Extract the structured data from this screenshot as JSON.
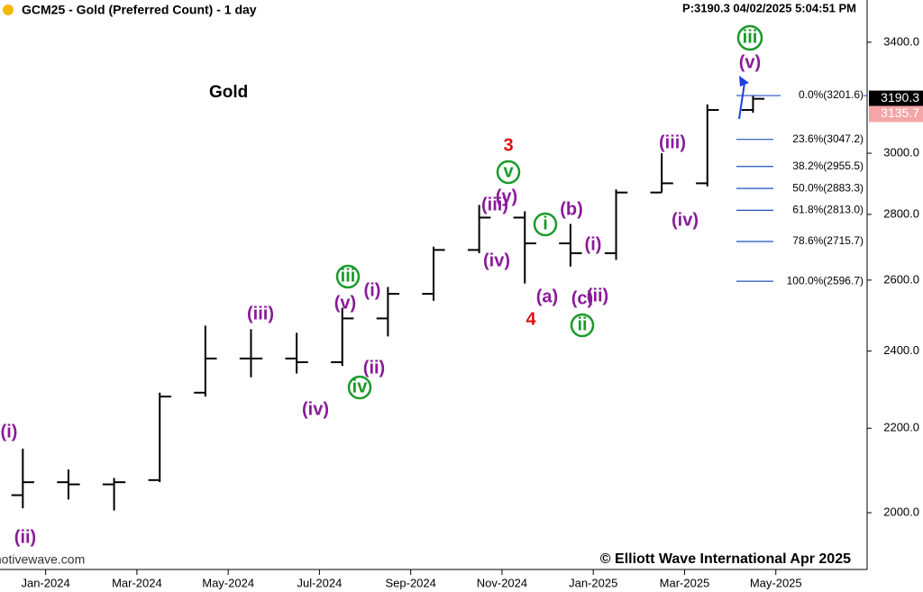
{
  "chart_data": {
    "type": "ohlc",
    "title": "GCM25 - Gold (Preferred Count) - 1 day",
    "status": "P:3190.3  04/02/2025 5:04:51 PM",
    "label": "Gold",
    "copyright": "© Elliott Wave International Apr 2025",
    "source": "motivewave.com",
    "log_scale": true,
    "color": "#000000",
    "x": [
      "2023-12",
      "2024-01",
      "2024-02",
      "2024-03",
      "2024-04",
      "2024-05",
      "2024-06",
      "2024-07",
      "2024-08",
      "2024-09",
      "2024-10",
      "2024-11",
      "2024-12",
      "2025-01",
      "2025-02",
      "2025-03",
      "2025-04"
    ],
    "open": [
      2040,
      2070,
      2065,
      2075,
      2290,
      2380,
      2380,
      2370,
      2490,
      2560,
      2690,
      2790,
      2710,
      2680,
      2870,
      2900,
      3150
    ],
    "high": [
      2150,
      2100,
      2080,
      2290,
      2470,
      2460,
      2450,
      2520,
      2580,
      2700,
      2830,
      2810,
      2770,
      2880,
      3000,
      3170,
      3200
    ],
    "low": [
      2010,
      2030,
      2005,
      2070,
      2280,
      2330,
      2340,
      2360,
      2440,
      2540,
      2680,
      2590,
      2640,
      2660,
      2870,
      2890,
      3140
    ],
    "close": [
      2070,
      2065,
      2070,
      2280,
      2380,
      2380,
      2370,
      2490,
      2560,
      2690,
      2790,
      2710,
      2680,
      2870,
      2900,
      3150,
      3190
    ],
    "xlim": [
      "2023-12",
      "2025-07"
    ],
    "xticks": [
      {
        "value": "2024-01",
        "label": "Jan-2024"
      },
      {
        "value": "2024-03",
        "label": "Mar-2024"
      },
      {
        "value": "2024-05",
        "label": "May-2024"
      },
      {
        "value": "2024-07",
        "label": "Jul-2024"
      },
      {
        "value": "2024-09",
        "label": "Sep-2024"
      },
      {
        "value": "2024-11",
        "label": "Nov-2024"
      },
      {
        "value": "2025-01",
        "label": "Jan-2025"
      },
      {
        "value": "2025-03",
        "label": "Mar-2025"
      },
      {
        "value": "2025-05",
        "label": "May-2025"
      }
    ],
    "ylim": [
      1876,
      3566
    ],
    "yticks": [
      {
        "value": 2000,
        "label": "2000.0"
      },
      {
        "value": 2200,
        "label": "2200.0"
      },
      {
        "value": 2400,
        "label": "2400.0"
      },
      {
        "value": 2600,
        "label": "2600.0"
      },
      {
        "value": 2800,
        "label": "2800.0"
      },
      {
        "value": 3000,
        "label": "3000.0"
      },
      {
        "value": 3400,
        "label": "3400.0"
      }
    ],
    "price_tags": [
      {
        "value": 3190.3,
        "color": "#000000"
      },
      {
        "value": 3135.7,
        "color": "#f4a6a6"
      }
    ],
    "fib_color": "#2050c0",
    "fib_levels": [
      {
        "value": 3201.6,
        "label": "0.0%(3201.6)"
      },
      {
        "value": 3047.2,
        "label": "23.6%(3047.2)"
      },
      {
        "value": 2955.5,
        "label": "38.2%(2955.5)"
      },
      {
        "value": 2883.3,
        "label": "50.0%(2883.3)"
      },
      {
        "value": 2813.0,
        "label": "61.8%(2813.0)"
      },
      {
        "value": 2715.7,
        "label": "78.6%(2715.7)"
      },
      {
        "value": 2596.7,
        "label": "100.0%(2596.7)"
      }
    ],
    "annotations": [
      {
        "text": "(i)",
        "color": "#8a1a9a"
      },
      {
        "text": "(ii)",
        "color": "#8a1a9a"
      },
      {
        "text": "(iii)",
        "color": "#8a1a9a"
      },
      {
        "text": "(iv)",
        "color": "#8a1a9a"
      },
      {
        "text": "(v)",
        "color": "#8a1a9a"
      },
      {
        "text": "iii",
        "color": "#1a9a2a"
      },
      {
        "text": "(i)",
        "color": "#8a1a9a"
      },
      {
        "text": "(ii)",
        "color": "#8a1a9a"
      },
      {
        "text": "iv",
        "color": "#1a9a2a"
      },
      {
        "text": "3",
        "color": "#e01010"
      },
      {
        "text": "v",
        "color": "#1a9a2a"
      },
      {
        "text": "(y)",
        "color": "#8a1a9a"
      },
      {
        "text": "(iii)",
        "color": "#8a1a9a"
      },
      {
        "text": "(iv)",
        "color": "#8a1a9a"
      },
      {
        "text": "(a)",
        "color": "#8a1a9a"
      },
      {
        "text": "4",
        "color": "#e01010"
      },
      {
        "text": "i",
        "color": "#1a9a2a"
      },
      {
        "text": "(b)",
        "color": "#8a1a9a"
      },
      {
        "text": "(c)",
        "color": "#8a1a9a"
      },
      {
        "text": "ii",
        "color": "#1a9a2a"
      },
      {
        "text": "(i)",
        "color": "#8a1a9a"
      },
      {
        "text": "(ii)",
        "color": "#8a1a9a"
      },
      {
        "text": "(iii)",
        "color": "#8a1a9a"
      },
      {
        "text": "(iv)",
        "color": "#8a1a9a"
      },
      {
        "text": "(v)",
        "color": "#8a1a9a"
      },
      {
        "text": "iii",
        "color": "#1a9a2a"
      }
    ]
  }
}
